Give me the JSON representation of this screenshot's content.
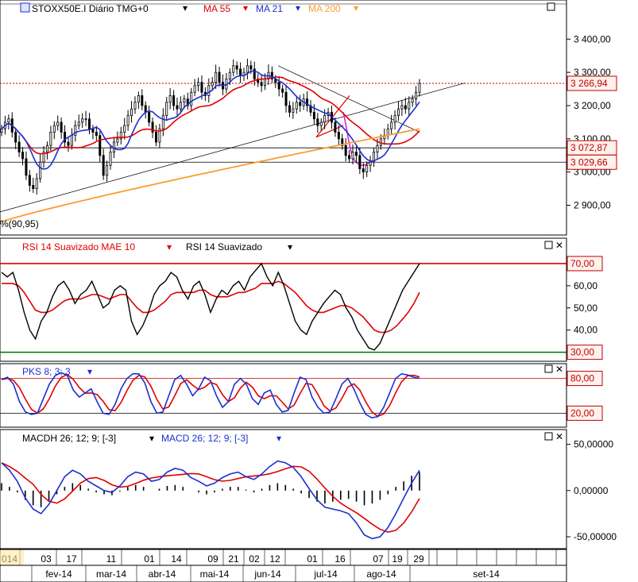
{
  "panels": {
    "price": {
      "title": "STOXX50E.I Diário TMG+0",
      "ma55_label": "MA 55",
      "ma21_label": "MA 21",
      "ma200_label": "MA 200",
      "corner_text": "%(90,95)",
      "price_tag": "3 266,94",
      "level_tag_1": "3 072,87",
      "level_tag_2": "3 029,66"
    },
    "rsi": {
      "label_mae": "RSI 14 Suavizado MAE 10",
      "label_rsi": "RSI 14 Suavizado",
      "tag_high": "70,00",
      "tag_low": "30,00"
    },
    "pks": {
      "label": "PKS 8; 3; 3",
      "tag_high": "80,00",
      "tag_low": "20,00"
    },
    "macd": {
      "label_hist": "MACDH 26; 12; 9; [-3]",
      "label_macd": "MACD 26; 12; 9; [-3]"
    }
  },
  "colors": {
    "price_bars": "#000000",
    "ma55": "#e00000",
    "ma21": "#1a30d0",
    "ma200": "#ff9a2e",
    "trend_purple": "#e020e0",
    "rsi_line": "#000000",
    "rsi_mae": "#e00000",
    "level_70": "#e00000",
    "level_30": "#007000",
    "pks_fast": "#1a30d0",
    "pks_slow": "#e00000",
    "macd_line": "#1a30d0",
    "macd_signal": "#e00000",
    "macd_hist": "#000000",
    "tag_border": "#c00000",
    "tag_fill": "#fff2ee"
  },
  "x_axis": {
    "day_ticks": [
      "014",
      "03",
      "17",
      "11",
      "01",
      "14",
      "09",
      "21",
      "02",
      "12",
      "01",
      "16",
      "07",
      "19",
      "29"
    ],
    "month_labels": [
      "fev-14",
      "mar-14",
      "abr-14",
      "mai-14",
      "jun-14",
      "jul-14",
      "ago-14",
      "set-14"
    ]
  },
  "chart_data": [
    {
      "type": "candlestick",
      "name_visible": "STOXX50E.I Diário TMG+0",
      "y_ticks": [
        2900,
        3000,
        3100,
        3200,
        3300,
        3400
      ],
      "y_tick_labels": [
        "2 900,00",
        "3 000,00",
        "3 100,00",
        "3 200,00",
        "3 300,00",
        "3 400,00"
      ],
      "ylim": [
        2820,
        3470
      ],
      "last_price": 3266.94,
      "horizontal_levels": [
        3072.87,
        3029.66
      ],
      "close_series": [
        3130,
        3150,
        3160,
        3120,
        3090,
        3060,
        3040,
        2990,
        2960,
        2950,
        2980,
        3030,
        3060,
        3080,
        3120,
        3140,
        3150,
        3120,
        3090,
        3080,
        3110,
        3140,
        3150,
        3160,
        3160,
        3130,
        3120,
        3110,
        3050,
        2990,
        3020,
        3060,
        3090,
        3100,
        3120,
        3140,
        3170,
        3190,
        3210,
        3230,
        3200,
        3180,
        3150,
        3120,
        3090,
        3130,
        3170,
        3210,
        3230,
        3200,
        3190,
        3210,
        3220,
        3200,
        3240,
        3260,
        3270,
        3240,
        3230,
        3260,
        3270,
        3300,
        3270,
        3250,
        3280,
        3300,
        3320,
        3310,
        3290,
        3300,
        3320,
        3310,
        3280,
        3270,
        3260,
        3280,
        3300,
        3280,
        3270,
        3250,
        3240,
        3200,
        3180,
        3190,
        3210,
        3200,
        3220,
        3200,
        3180,
        3160,
        3140,
        3150,
        3170,
        3180,
        3150,
        3120,
        3100,
        3080,
        3050,
        3040,
        3060,
        3050,
        3010,
        3000,
        3020,
        3030,
        3060,
        3080,
        3100,
        3110,
        3130,
        3150,
        3170,
        3190,
        3200,
        3190,
        3210,
        3220,
        3240,
        3267
      ]
    },
    {
      "type": "line",
      "name_visible": "RSI 14 Suavizado",
      "y_ticks": [
        40,
        50,
        60,
        70
      ],
      "y_tick_labels": [
        "40,00",
        "50,00",
        "60,00"
      ],
      "ylim": [
        27,
        75
      ],
      "levels": [
        70,
        30
      ],
      "series": [
        {
          "name": "RSI 14 Suavizado",
          "values": [
            66,
            64,
            66,
            58,
            48,
            40,
            36,
            44,
            48,
            55,
            60,
            62,
            58,
            52,
            56,
            58,
            62,
            56,
            50,
            52,
            58,
            60,
            58,
            44,
            38,
            42,
            48,
            56,
            60,
            62,
            66,
            64,
            58,
            54,
            60,
            62,
            56,
            48,
            54,
            58,
            56,
            60,
            62,
            58,
            64,
            67,
            70,
            64,
            60,
            66,
            60,
            52,
            44,
            40,
            38,
            44,
            48,
            52,
            55,
            58,
            56,
            50,
            46,
            40,
            36,
            32,
            31,
            34,
            40,
            46,
            52,
            58,
            62,
            66,
            70
          ]
        },
        {
          "name": "RSI 14 Suavizado MAE 10",
          "values": [
            61,
            61,
            61,
            60,
            57,
            53,
            49,
            48,
            48,
            49,
            51,
            53,
            54,
            54,
            54,
            55,
            56,
            56,
            55,
            54,
            55,
            56,
            56,
            53,
            50,
            48,
            48,
            49,
            51,
            53,
            56,
            57,
            57,
            57,
            57,
            58,
            58,
            56,
            55,
            55,
            55,
            56,
            57,
            57,
            58,
            59,
            61,
            61,
            61,
            62,
            61,
            59,
            57,
            54,
            51,
            49,
            48,
            48,
            49,
            50,
            51,
            51,
            50,
            48,
            46,
            43,
            40,
            39,
            39,
            40,
            42,
            45,
            48,
            52,
            57
          ]
        }
      ]
    },
    {
      "type": "line",
      "name_visible": "PKS 8; 3; 3",
      "levels": [
        80,
        20
      ],
      "ylim": [
        0,
        100
      ],
      "series": [
        {
          "name": "PKS 8; 3; 3",
          "values": [
            78,
            82,
            70,
            40,
            22,
            18,
            20,
            45,
            70,
            85,
            90,
            85,
            60,
            48,
            55,
            62,
            40,
            20,
            18,
            35,
            62,
            80,
            88,
            88,
            72,
            40,
            20,
            22,
            50,
            78,
            85,
            70,
            50,
            62,
            82,
            76,
            50,
            30,
            40,
            70,
            80,
            70,
            45,
            35,
            55,
            60,
            35,
            22,
            25,
            55,
            82,
            78,
            48,
            30,
            20,
            22,
            45,
            70,
            80,
            62,
            38,
            18,
            12,
            14,
            30,
            55,
            80,
            88,
            86,
            82,
            80
          ]
        }
      ]
    },
    {
      "type": "bar_line",
      "name_visible": "MACD 26; 12; 9; [-3]",
      "y_ticks": [
        -50,
        0,
        50
      ],
      "y_tick_labels": [
        "-50,00000",
        "0,00000",
        "50,00000"
      ],
      "ylim": [
        -62,
        60
      ],
      "series": [
        {
          "name": "MACD 26; 12; 9; [-3]",
          "values": [
            30,
            22,
            10,
            -8,
            -20,
            -25,
            -15,
            0,
            15,
            22,
            18,
            10,
            5,
            0,
            -2,
            5,
            15,
            20,
            18,
            10,
            12,
            20,
            24,
            22,
            14,
            10,
            5,
            8,
            14,
            18,
            20,
            15,
            12,
            18,
            26,
            32,
            30,
            25,
            15,
            2,
            -10,
            -18,
            -20,
            -22,
            -25,
            -35,
            -48,
            -52,
            -50,
            -40,
            -25,
            -8,
            8,
            22
          ]
        },
        {
          "name": "MACDH 26; 12; 9; [-3]",
          "values": [
            8,
            4,
            -2,
            -10,
            -16,
            -18,
            -12,
            -4,
            4,
            8,
            6,
            2,
            -2,
            -4,
            -5,
            -1,
            4,
            6,
            4,
            0,
            2,
            5,
            6,
            4,
            0,
            -2,
            -4,
            -2,
            2,
            4,
            4,
            1,
            -2,
            2,
            6,
            8,
            6,
            2,
            -3,
            -8,
            -12,
            -14,
            -12,
            -10,
            -9,
            -12,
            -16,
            -14,
            -10,
            -4,
            4,
            10,
            16,
            20
          ]
        }
      ]
    }
  ]
}
